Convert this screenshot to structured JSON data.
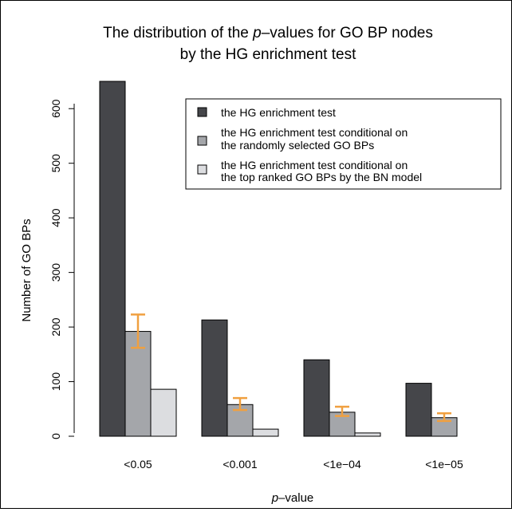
{
  "chart_data": {
    "type": "bar",
    "title_line1_pre": "The distribution of the ",
    "title_line1_italic": "p",
    "title_line1_post": "–values for GO BP nodes",
    "title_line2": "by the HG enrichment test",
    "xlabel_italic": "p",
    "xlabel_post": "–value",
    "ylabel": "Number of GO BPs",
    "ylim": [
      0,
      650
    ],
    "yticks": [
      0,
      100,
      200,
      300,
      400,
      500,
      600
    ],
    "categories": [
      "<0.05",
      "<0.001",
      "<1e−04",
      "<1e−05"
    ],
    "series": [
      {
        "name": "the HG enrichment test",
        "color": "#45464a",
        "values": [
          650,
          213,
          140,
          97
        ]
      },
      {
        "name": "the HG enrichment test conditional on the randomly selected GO BPs",
        "name_lines": [
          "the HG enrichment test conditional on",
          "the randomly selected GO BPs"
        ],
        "color": "#a4a6aa",
        "values": [
          192,
          58,
          44,
          34
        ],
        "error_low": [
          162,
          48,
          37,
          28
        ],
        "error_high": [
          223,
          70,
          54,
          42
        ]
      },
      {
        "name": "the HG enrichment test conditional on the top ranked GO BPs by the BN model",
        "name_lines": [
          "the HG enrichment test conditional on",
          "the top ranked GO BPs by the BN model"
        ],
        "color": "#dcdde0",
        "values": [
          86,
          13,
          6,
          0
        ]
      }
    ],
    "error_bar_color": "#f0a040",
    "legend_position": "top-right",
    "grid": false
  }
}
